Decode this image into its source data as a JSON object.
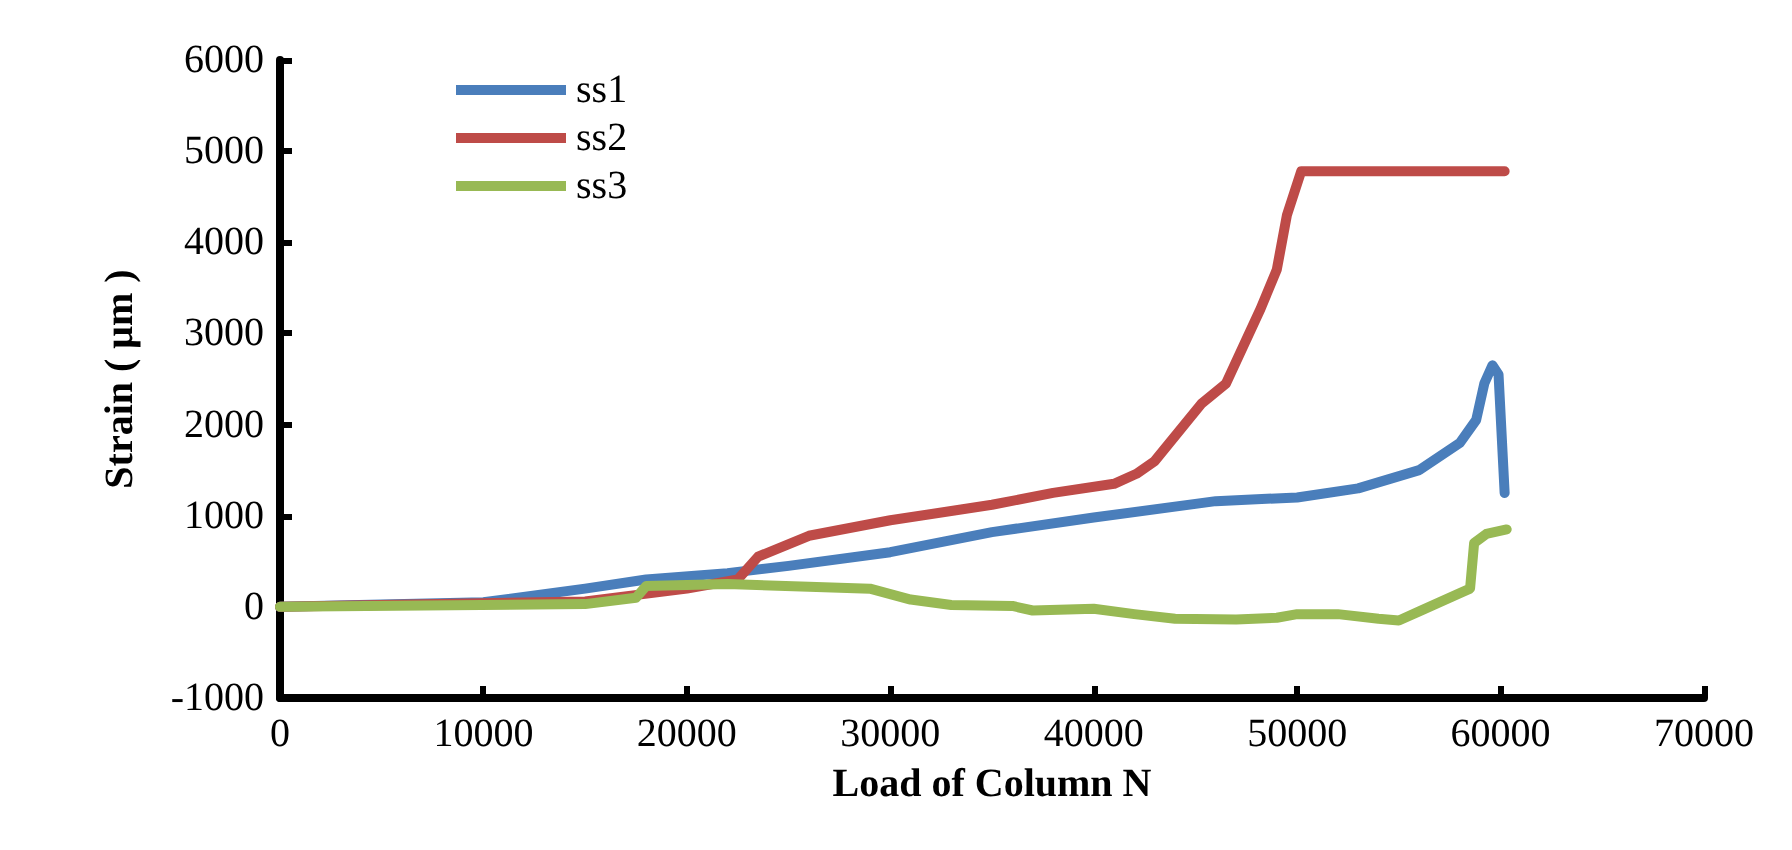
{
  "chart_data": {
    "type": "line",
    "xlabel": "Load of Column N",
    "ylabel": "Strain ( μm )",
    "xlim": [
      0,
      70000
    ],
    "xticks": [
      0,
      10000,
      20000,
      30000,
      40000,
      50000,
      60000,
      70000
    ],
    "ylim": [
      -1000,
      6000
    ],
    "yticks": [
      -1000,
      0,
      1000,
      2000,
      3000,
      4000,
      5000,
      6000
    ],
    "grid": false,
    "legend": "top left",
    "marker": "none",
    "line_style": "solid",
    "series": [
      {
        "name": "ss1",
        "color": "#4a7ebb",
        "x": [
          0,
          10000,
          15000,
          18000,
          22000,
          25000,
          30000,
          35000,
          40000,
          45000,
          46000,
          50000,
          53000,
          56000,
          58000,
          58800,
          59200,
          59600,
          59900,
          60200
        ],
        "values": [
          0,
          50,
          200,
          300,
          370,
          450,
          600,
          820,
          980,
          1130,
          1160,
          1200,
          1300,
          1500,
          1800,
          2050,
          2450,
          2650,
          2550,
          1250
        ]
      },
      {
        "name": "ss2",
        "color": "#be4b48",
        "x": [
          0,
          15000,
          20000,
          22500,
          23500,
          26000,
          30000,
          35000,
          38000,
          41000,
          42100,
          43000,
          45300,
          46500,
          48200,
          49000,
          49500,
          50200,
          60200
        ],
        "values": [
          0,
          60,
          200,
          300,
          550,
          780,
          950,
          1120,
          1250,
          1350,
          1460,
          1600,
          2230,
          2450,
          3270,
          3700,
          4300,
          4780,
          4780
        ]
      },
      {
        "name": "ss3",
        "color": "#98b954",
        "x": [
          0,
          15000,
          17500,
          18000,
          22000,
          26000,
          29000,
          31000,
          33000,
          36000,
          37000,
          40000,
          42000,
          44000,
          47000,
          49000,
          50000,
          52000,
          54000,
          55000,
          56000,
          58000,
          58500,
          58700,
          59300,
          60300
        ],
        "values": [
          0,
          30,
          100,
          230,
          250,
          220,
          200,
          80,
          20,
          10,
          -40,
          -20,
          -80,
          -130,
          -140,
          -120,
          -80,
          -80,
          -130,
          -150,
          -50,
          150,
          200,
          700,
          800,
          850
        ]
      }
    ]
  }
}
